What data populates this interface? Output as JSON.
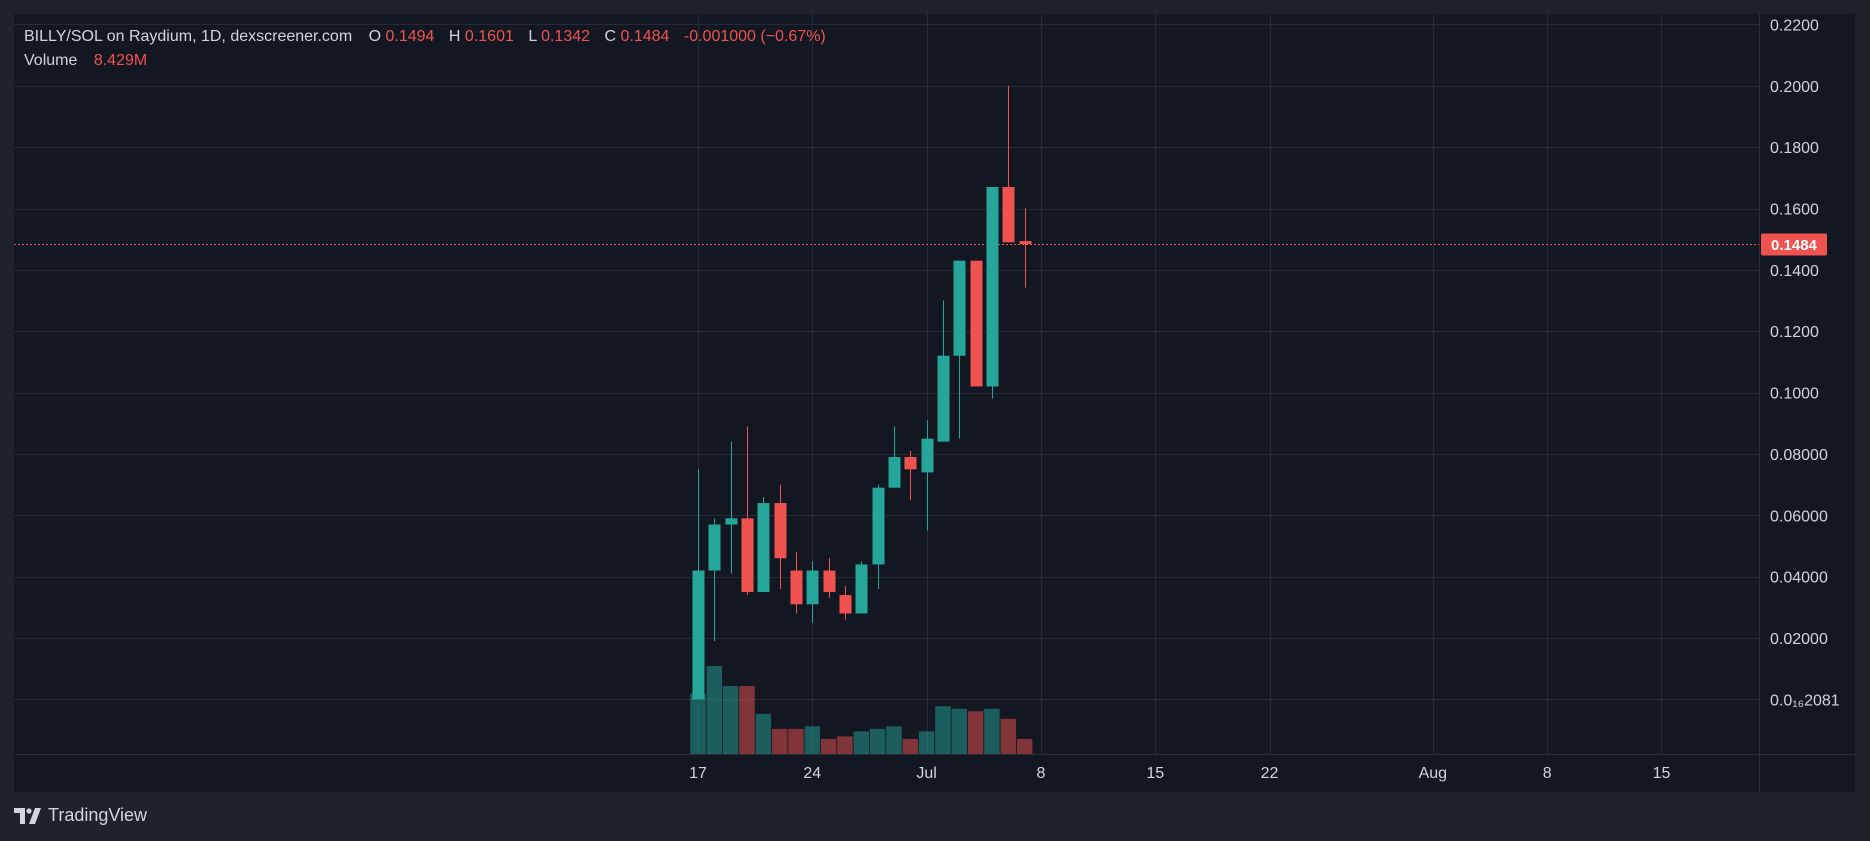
{
  "header": {
    "pair": "BILLY/SOL on Raydium, 1D, dexscreener.com",
    "o_label": "O",
    "o_value": "0.1494",
    "h_label": "H",
    "h_value": "0.1601",
    "l_label": "L",
    "l_value": "0.1342",
    "c_label": "C",
    "c_value": "0.1484",
    "change": "-0.001000 (−0.67%)",
    "volume_label": "Volume",
    "volume_value": "8.429M"
  },
  "branding": {
    "name": "TradingView"
  },
  "colors": {
    "background": "#131722",
    "frame": "#1e222d",
    "grid": "#262a35",
    "up": "#26a69a",
    "down": "#ef5350",
    "text": "#d1d4dc"
  },
  "chart_data": {
    "type": "candlestick",
    "title": "BILLY/SOL on Raydium, 1D, dexscreener.com",
    "ylim": [
      -0.0178,
      0.2234
    ],
    "ticks_y": [
      {
        "value": 0.22,
        "label": "0.2200"
      },
      {
        "value": 0.2,
        "label": "0.2000"
      },
      {
        "value": 0.18,
        "label": "0.1800"
      },
      {
        "value": 0.16,
        "label": "0.1600"
      },
      {
        "value": 0.14,
        "label": "0.1400"
      },
      {
        "value": 0.12,
        "label": "0.1200"
      },
      {
        "value": 0.1,
        "label": "0.1000"
      },
      {
        "value": 0.08,
        "label": "0.08000"
      },
      {
        "value": 0.06,
        "label": "0.06000"
      },
      {
        "value": 0.04,
        "label": "0.04000"
      },
      {
        "value": 0.02,
        "label": "0.02000"
      },
      {
        "value": 0.0,
        "label": "0.0₁₆2081"
      }
    ],
    "ticks_x": [
      {
        "day": 17,
        "label": "17"
      },
      {
        "day": 24,
        "label": "24"
      },
      {
        "day": 31,
        "label": "Jul"
      },
      {
        "day": 38,
        "label": "8"
      },
      {
        "day": 45,
        "label": "15"
      },
      {
        "day": 52,
        "label": "22"
      },
      {
        "day": 62,
        "label": "Aug"
      },
      {
        "day": 69,
        "label": "8"
      },
      {
        "day": 76,
        "label": "15"
      }
    ],
    "last_price": {
      "value": 0.1484,
      "label": "0.1484"
    },
    "candles": [
      {
        "date": "Jun 17",
        "o": 0.0,
        "h": 0.075,
        "l": 0.0,
        "c": 0.042
      },
      {
        "date": "Jun 18",
        "o": 0.042,
        "h": 0.059,
        "l": 0.019,
        "c": 0.057
      },
      {
        "date": "Jun 19",
        "o": 0.057,
        "h": 0.084,
        "l": 0.041,
        "c": 0.059
      },
      {
        "date": "Jun 20",
        "o": 0.059,
        "h": 0.089,
        "l": 0.034,
        "c": 0.035
      },
      {
        "date": "Jun 21",
        "o": 0.035,
        "h": 0.066,
        "l": 0.035,
        "c": 0.064
      },
      {
        "date": "Jun 22",
        "o": 0.064,
        "h": 0.07,
        "l": 0.036,
        "c": 0.046
      },
      {
        "date": "Jun 23",
        "o": 0.042,
        "h": 0.048,
        "l": 0.028,
        "c": 0.031
      },
      {
        "date": "Jun 24",
        "o": 0.031,
        "h": 0.045,
        "l": 0.025,
        "c": 0.042
      },
      {
        "date": "Jun 25",
        "o": 0.042,
        "h": 0.046,
        "l": 0.033,
        "c": 0.035
      },
      {
        "date": "Jun 26",
        "o": 0.034,
        "h": 0.037,
        "l": 0.026,
        "c": 0.028
      },
      {
        "date": "Jun 27",
        "o": 0.028,
        "h": 0.045,
        "l": 0.028,
        "c": 0.044
      },
      {
        "date": "Jun 28",
        "o": 0.044,
        "h": 0.07,
        "l": 0.036,
        "c": 0.069
      },
      {
        "date": "Jun 29",
        "o": 0.069,
        "h": 0.089,
        "l": 0.069,
        "c": 0.079
      },
      {
        "date": "Jun 30",
        "o": 0.079,
        "h": 0.081,
        "l": 0.065,
        "c": 0.075
      },
      {
        "date": "Jul 1",
        "o": 0.074,
        "h": 0.091,
        "l": 0.055,
        "c": 0.085
      },
      {
        "date": "Jul 2",
        "o": 0.084,
        "h": 0.13,
        "l": 0.084,
        "c": 0.112
      },
      {
        "date": "Jul 3",
        "o": 0.112,
        "h": 0.143,
        "l": 0.085,
        "c": 0.143
      },
      {
        "date": "Jul 4",
        "o": 0.143,
        "h": 0.143,
        "l": 0.102,
        "c": 0.102
      },
      {
        "date": "Jul 5",
        "o": 0.102,
        "h": 0.167,
        "l": 0.098,
        "c": 0.167
      },
      {
        "date": "Jul 6",
        "o": 0.167,
        "h": 0.2,
        "l": 0.149,
        "c": 0.149
      },
      {
        "date": "Jul 7",
        "o": 0.1494,
        "h": 0.1601,
        "l": 0.1342,
        "c": 0.1484
      }
    ],
    "volume": {
      "label": "Volume",
      "series": [
        {
          "date": "Jun 17",
          "value": 2.4,
          "direction": "up"
        },
        {
          "date": "Jun 18",
          "value": 3.5,
          "direction": "up"
        },
        {
          "date": "Jun 19",
          "value": 2.7,
          "direction": "up"
        },
        {
          "date": "Jun 20",
          "value": 2.7,
          "direction": "down"
        },
        {
          "date": "Jun 21",
          "value": 1.6,
          "direction": "up"
        },
        {
          "date": "Jun 22",
          "value": 1.0,
          "direction": "down"
        },
        {
          "date": "Jun 23",
          "value": 1.0,
          "direction": "down"
        },
        {
          "date": "Jun 24",
          "value": 1.1,
          "direction": "up"
        },
        {
          "date": "Jun 25",
          "value": 0.6,
          "direction": "down"
        },
        {
          "date": "Jun 26",
          "value": 0.7,
          "direction": "down"
        },
        {
          "date": "Jun 27",
          "value": 0.9,
          "direction": "up"
        },
        {
          "date": "Jun 28",
          "value": 1.0,
          "direction": "up"
        },
        {
          "date": "Jun 29",
          "value": 1.1,
          "direction": "up"
        },
        {
          "date": "Jun 30",
          "value": 0.6,
          "direction": "down"
        },
        {
          "date": "Jul 1",
          "value": 0.9,
          "direction": "up"
        },
        {
          "date": "Jul 2",
          "value": 1.9,
          "direction": "up"
        },
        {
          "date": "Jul 3",
          "value": 1.8,
          "direction": "up"
        },
        {
          "date": "Jul 4",
          "value": 1.7,
          "direction": "down"
        },
        {
          "date": "Jul 5",
          "value": 1.8,
          "direction": "up"
        },
        {
          "date": "Jul 6",
          "value": 1.4,
          "direction": "down"
        },
        {
          "date": "Jul 7",
          "value": 0.6,
          "direction": "down"
        }
      ]
    }
  }
}
